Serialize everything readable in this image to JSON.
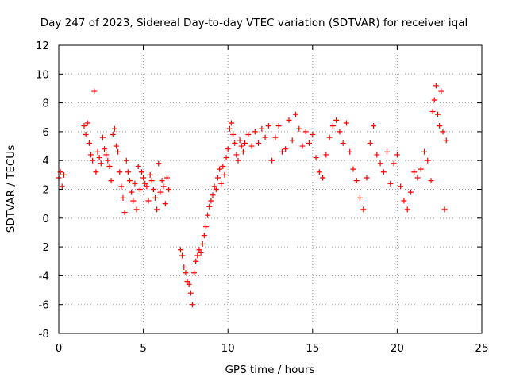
{
  "chart_data": {
    "type": "scatter",
    "title": "Day 247 of 2023, Sidereal Day-to-day VTEC variation (SDTVAR) for receiver iqal",
    "xlabel": "GPS time / hours",
    "ylabel": "SDTVAR / TECUs",
    "xlim": [
      0,
      25
    ],
    "ylim": [
      -8,
      12
    ],
    "xticks": [
      "0",
      "5",
      "10",
      "15",
      "20",
      "25"
    ],
    "yticks": [
      "-8",
      "-6",
      "-4",
      "-2",
      "0",
      "2",
      "4",
      "6",
      "8",
      "10",
      "12"
    ],
    "grid": true,
    "marker": "+",
    "series_color": "#ff0000",
    "series": [
      {
        "name": "SDTVAR",
        "x": [
          0.0,
          0.1,
          0.2,
          0.3,
          1.5,
          1.6,
          1.7,
          1.8,
          1.9,
          2.0,
          2.1,
          2.2,
          2.3,
          2.4,
          2.5,
          2.6,
          2.7,
          2.8,
          2.9,
          3.0,
          3.1,
          3.2,
          3.3,
          3.4,
          3.5,
          3.6,
          3.7,
          3.8,
          3.9,
          4.0,
          4.1,
          4.2,
          4.3,
          4.4,
          4.5,
          4.6,
          4.7,
          4.8,
          4.9,
          5.0,
          5.1,
          5.2,
          5.3,
          5.4,
          5.5,
          5.6,
          5.7,
          5.8,
          5.9,
          6.0,
          6.1,
          6.2,
          6.3,
          6.4,
          6.5,
          7.2,
          7.3,
          7.4,
          7.5,
          7.6,
          7.7,
          7.8,
          7.9,
          8.0,
          8.1,
          8.2,
          8.3,
          8.4,
          8.5,
          8.6,
          8.7,
          8.8,
          8.9,
          9.0,
          9.1,
          9.2,
          9.3,
          9.4,
          9.5,
          9.6,
          9.7,
          9.8,
          9.9,
          10.0,
          10.1,
          10.2,
          10.3,
          10.4,
          10.5,
          10.6,
          10.7,
          10.8,
          10.9,
          11.0,
          11.2,
          11.4,
          11.6,
          11.8,
          12.0,
          12.2,
          12.4,
          12.6,
          12.8,
          13.0,
          13.2,
          13.4,
          13.6,
          13.8,
          14.0,
          14.2,
          14.4,
          14.6,
          14.8,
          15.0,
          15.2,
          15.4,
          15.6,
          15.8,
          16.0,
          16.2,
          16.4,
          16.6,
          16.8,
          17.0,
          17.2,
          17.4,
          17.6,
          17.8,
          18.0,
          18.2,
          18.4,
          18.6,
          18.8,
          19.0,
          19.2,
          19.4,
          19.6,
          19.8,
          20.0,
          20.2,
          20.4,
          20.6,
          20.8,
          21.0,
          21.2,
          21.4,
          21.6,
          21.8,
          22.0,
          22.1,
          22.2,
          22.3,
          22.4,
          22.5,
          22.6,
          22.7,
          22.8,
          22.9
        ],
        "y": [
          2.8,
          3.2,
          2.2,
          3.0,
          6.4,
          5.8,
          6.6,
          5.2,
          4.4,
          4.0,
          8.8,
          3.2,
          4.6,
          4.2,
          3.8,
          5.6,
          4.8,
          4.4,
          4.0,
          3.6,
          2.6,
          5.8,
          6.2,
          5.0,
          4.6,
          3.2,
          2.2,
          1.4,
          0.4,
          4.0,
          3.2,
          2.6,
          1.8,
          1.2,
          2.4,
          0.6,
          3.6,
          2.0,
          3.2,
          2.8,
          2.4,
          2.2,
          1.2,
          3.0,
          2.6,
          2.0,
          1.4,
          0.6,
          3.8,
          1.8,
          2.6,
          2.2,
          1.0,
          2.8,
          2.0,
          -2.2,
          -2.6,
          -3.4,
          -3.8,
          -4.4,
          -4.6,
          -5.2,
          -6.0,
          -3.8,
          -3.0,
          -2.6,
          -2.2,
          -2.4,
          -1.8,
          -1.2,
          -0.6,
          0.2,
          0.8,
          1.2,
          1.6,
          2.2,
          2.0,
          2.8,
          3.4,
          2.4,
          3.6,
          3.0,
          4.2,
          4.8,
          6.2,
          6.6,
          5.8,
          5.2,
          4.4,
          4.0,
          5.4,
          5.0,
          4.6,
          5.2,
          5.8,
          5.0,
          6.0,
          5.2,
          6.2,
          5.6,
          6.4,
          4.0,
          5.6,
          6.4,
          4.6,
          4.8,
          6.8,
          5.4,
          7.2,
          6.2,
          5.0,
          6.0,
          5.2,
          5.8,
          4.2,
          3.2,
          2.8,
          4.4,
          5.6,
          6.4,
          6.8,
          6.0,
          5.2,
          6.6,
          4.6,
          3.4,
          2.6,
          1.4,
          0.6,
          2.8,
          5.2,
          6.4,
          4.4,
          3.8,
          3.2,
          4.6,
          2.4,
          3.8,
          4.4,
          2.2,
          1.2,
          0.6,
          1.8,
          3.2,
          2.8,
          3.4,
          4.6,
          4.0,
          2.6,
          7.4,
          8.2,
          9.2,
          7.2,
          6.4,
          8.8,
          6.0,
          0.6,
          5.4
        ]
      }
    ]
  }
}
